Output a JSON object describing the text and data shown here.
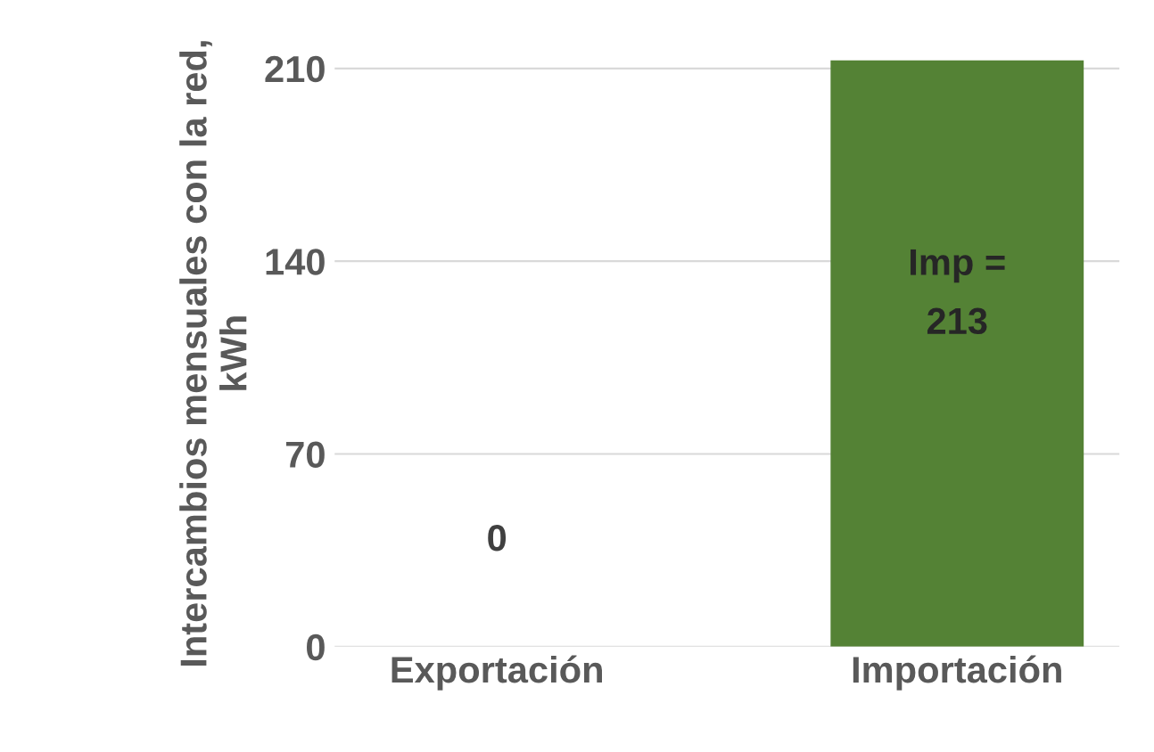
{
  "chart_data": {
    "type": "bar",
    "ylabel": "Intercambios mensuales con la red, kWh",
    "categories": [
      "Exportación",
      "Importación"
    ],
    "values": [
      0,
      213
    ],
    "colors": [
      "#a6a6a6",
      "#548235"
    ],
    "value_labels": [
      "0",
      "Imp =\n213"
    ],
    "ylim": [
      0,
      213
    ],
    "yticks": [
      0,
      70,
      140,
      210
    ],
    "grid": "y"
  }
}
